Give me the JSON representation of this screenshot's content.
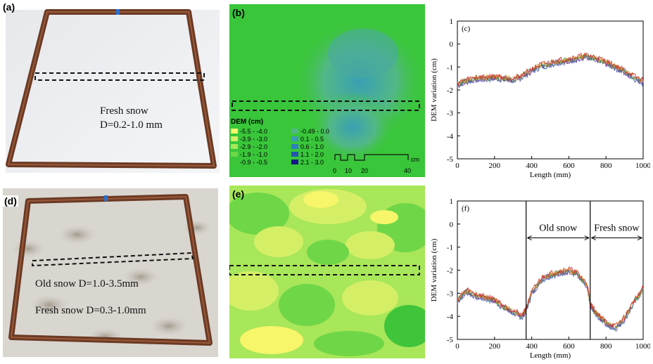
{
  "panels": {
    "a": {
      "label": "(a)",
      "text_line1": "Fresh snow",
      "text_line2": "D=0.2-1.0 mm"
    },
    "b": {
      "label": "(b)",
      "legend_title": "DEM (cm)",
      "legend_items": [
        {
          "range": "-5.5 - -4.0",
          "color": "#f7f56a"
        },
        {
          "range": "-3.9 - -3.0",
          "color": "#d4ef66"
        },
        {
          "range": "-2.9 - -2.0",
          "color": "#a8e65a"
        },
        {
          "range": "-1.9 - -1.0",
          "color": "#6fd647"
        },
        {
          "range": "-0.9 - -0.5",
          "color": "#3fc43a"
        },
        {
          "range": "-0.49 - 0.0",
          "color": "#52b886"
        },
        {
          "range": "0.1 - 0.5",
          "color": "#3a9fb3"
        },
        {
          "range": "0.6 - 1.0",
          "color": "#2f7fc0"
        },
        {
          "range": "1.1 - 2.0",
          "color": "#2456b0"
        },
        {
          "range": "2.1 - 3.0",
          "color": "#121a86"
        }
      ],
      "scale_labels": [
        "0",
        "10",
        "20",
        "40"
      ],
      "scale_unit": "cm"
    },
    "d": {
      "label": "(d)",
      "text_line1": "Old snow D=1.0-3.5mm",
      "text_line2": "Fresh snow D=0.3-1.0mm"
    },
    "e": {
      "label": "(e)"
    }
  },
  "chart_data": [
    {
      "type": "line",
      "panel_label": "(c)",
      "xlabel": "Length (mm)",
      "ylabel": "DEM variation (cm)",
      "xlim": [
        0,
        1000
      ],
      "ylim": [
        -5,
        1
      ],
      "xticks": [
        "0",
        "200",
        "400",
        "600",
        "800",
        "1000"
      ],
      "yticks": [
        "-5",
        "-4",
        "-3",
        "-2",
        "-1",
        "0",
        "1"
      ],
      "series": [
        {
          "x": [
            0,
            50,
            100,
            150,
            200,
            250,
            300,
            350,
            400,
            450,
            500,
            550,
            600,
            650,
            700,
            750,
            800,
            850,
            900,
            950,
            1000
          ],
          "values": [
            -1.75,
            -1.6,
            -1.5,
            -1.5,
            -1.45,
            -1.5,
            -1.55,
            -1.4,
            -1.15,
            -0.95,
            -0.85,
            -0.75,
            -0.7,
            -0.6,
            -0.55,
            -0.65,
            -0.8,
            -1.0,
            -1.2,
            -1.45,
            -1.65
          ]
        }
      ]
    },
    {
      "type": "line",
      "panel_label": "(f)",
      "xlabel": "Length (mm)",
      "ylabel": "DEM variation (cm)",
      "xlim": [
        0,
        1000
      ],
      "ylim": [
        -5,
        1
      ],
      "xticks": [
        "0",
        "200",
        "400",
        "600",
        "800",
        "1000"
      ],
      "yticks": [
        "-5",
        "-4",
        "-3",
        "-2",
        "-1",
        "0",
        "1"
      ],
      "annotations": [
        "Old snow",
        "Fresh snow"
      ],
      "dividers": [
        370,
        715
      ],
      "series": [
        {
          "x": [
            0,
            50,
            100,
            150,
            200,
            250,
            300,
            350,
            370,
            400,
            450,
            500,
            550,
            600,
            650,
            700,
            715,
            750,
            800,
            850,
            900,
            950,
            1000
          ],
          "values": [
            -3.3,
            -2.9,
            -3.1,
            -3.2,
            -3.3,
            -3.6,
            -3.8,
            -4.0,
            -3.7,
            -3.0,
            -2.4,
            -2.2,
            -2.1,
            -2.0,
            -2.2,
            -2.7,
            -3.5,
            -3.9,
            -4.3,
            -4.5,
            -4.1,
            -3.4,
            -2.8
          ]
        }
      ]
    }
  ]
}
